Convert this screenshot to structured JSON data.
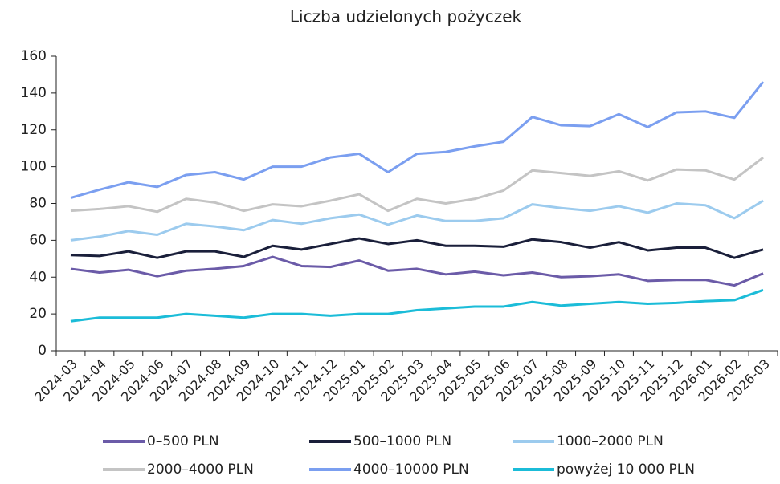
{
  "chart_data": {
    "type": "line",
    "title": "Liczba udzielonych pożyczek",
    "categories": [
      "2024-03",
      "2024-04",
      "2024-05",
      "2024-06",
      "2024-07",
      "2024-08",
      "2024-09",
      "2024-10",
      "2024-11",
      "2024-12",
      "2025-01",
      "2025-02",
      "2025-03",
      "2025-04",
      "2025-05",
      "2025-06",
      "2025-07",
      "2025-08",
      "2025-09",
      "2025-10",
      "2025-11",
      "2025-12",
      "2026-01",
      "2026-02",
      "2026-03"
    ],
    "series": [
      {
        "name": "0–500 PLN",
        "color": "#6b5ba8",
        "values": [
          44.5,
          42.5,
          44,
          40.5,
          43.5,
          44.5,
          46,
          51,
          46,
          45.5,
          49,
          43.5,
          44.5,
          41.5,
          43,
          41,
          42.5,
          40,
          40.5,
          41.5,
          38,
          38.5,
          38.5,
          35.5,
          42
        ]
      },
      {
        "name": "500–1000 PLN",
        "color": "#1a1f3a",
        "values": [
          52,
          51.5,
          54,
          50.5,
          54,
          54,
          51,
          57,
          55,
          58,
          61,
          58,
          60,
          57,
          57,
          56.5,
          60.5,
          59,
          56,
          59,
          54.5,
          56,
          56,
          50.5,
          55
        ]
      },
      {
        "name": "1000–2000 PLN",
        "color": "#9ccbee",
        "values": [
          60,
          62,
          65,
          63,
          69,
          67.5,
          65.5,
          71,
          69,
          72,
          74,
          68.5,
          73.5,
          70.5,
          70.5,
          72,
          79.5,
          77.5,
          76,
          78.5,
          75,
          80,
          79,
          72,
          81.5
        ]
      },
      {
        "name": "2000–4000 PLN",
        "color": "#c4c4c4",
        "values": [
          76,
          77,
          78.5,
          75.5,
          82.5,
          80.5,
          76,
          79.5,
          78.5,
          81.5,
          85,
          76,
          82.5,
          80,
          82.5,
          87,
          98,
          96.5,
          95,
          97.5,
          92.5,
          98.5,
          98,
          93,
          105
        ]
      },
      {
        "name": "4000–10000 PLN",
        "color": "#7b9ff0",
        "values": [
          83,
          87.5,
          91.5,
          89,
          95.5,
          97,
          93,
          100,
          100,
          105,
          107,
          97,
          107,
          108,
          111,
          113.5,
          127,
          122.5,
          122,
          128.5,
          121.5,
          129.5,
          130,
          126.5,
          146
        ]
      },
      {
        "name": "powyżej 10 000 PLN",
        "color": "#1bbcd8",
        "values": [
          16,
          18,
          18,
          18,
          20,
          19,
          18,
          20,
          20,
          19,
          20,
          20,
          22,
          23,
          24,
          24,
          26.5,
          24.5,
          25.5,
          26.5,
          25.5,
          26,
          27,
          27.5,
          33
        ]
      }
    ],
    "ylim": [
      0,
      160
    ],
    "yticks": [
      0,
      20,
      40,
      60,
      80,
      100,
      120,
      140,
      160
    ],
    "grid": false
  }
}
